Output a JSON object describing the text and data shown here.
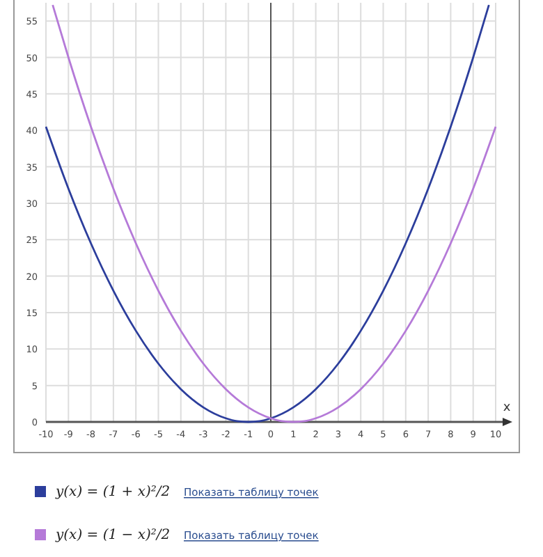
{
  "chart_data": {
    "type": "line",
    "xlabel": "x",
    "xlim": [
      -10,
      10
    ],
    "ylim": [
      0,
      57.5
    ],
    "xticks": [
      -10,
      -9,
      -8,
      -7,
      -6,
      -5,
      -4,
      -3,
      -2,
      -1,
      0,
      1,
      2,
      3,
      4,
      5,
      6,
      7,
      8,
      9,
      10
    ],
    "yticks": [
      0,
      5,
      10,
      15,
      20,
      25,
      30,
      35,
      40,
      45,
      50,
      55
    ],
    "grid": true,
    "legend": "bottom left",
    "marker": "none",
    "line_style": "solid",
    "series": [
      {
        "name": "y(x) = (1 + x)²/2",
        "color": "#2c3e9c",
        "x": [
          -10,
          -9,
          -8,
          -7,
          -6,
          -5,
          -4,
          -3,
          -2,
          -1.5,
          -1,
          -0.5,
          0,
          1,
          2,
          3,
          4,
          5,
          6,
          7,
          8,
          9,
          9.7
        ],
        "values": [
          40.5,
          32,
          24.5,
          18,
          12.5,
          8,
          4.5,
          2,
          0.5,
          0.1,
          0,
          0.1,
          0.5,
          2,
          4.5,
          8,
          12.5,
          18,
          24.5,
          32,
          40.5,
          50,
          57.2
        ]
      },
      {
        "name": "y(x) = (1 − x)²/2",
        "color": "#b57ad8",
        "x": [
          -9.7,
          -9,
          -8,
          -7,
          -6,
          -5,
          -4,
          -3,
          -2,
          -1,
          0,
          0.5,
          1,
          1.5,
          2,
          3,
          4,
          5,
          6,
          7,
          8,
          9,
          10
        ],
        "values": [
          57.2,
          50,
          40.5,
          32,
          24.5,
          18,
          12.5,
          8,
          4.5,
          2,
          0.5,
          0.1,
          0,
          0.1,
          0.5,
          2,
          4.5,
          8,
          12.5,
          18,
          24.5,
          32,
          40.5
        ]
      }
    ],
    "annotations": [
      "Показать таблицу точек",
      "Показать таблицу точек"
    ]
  }
}
